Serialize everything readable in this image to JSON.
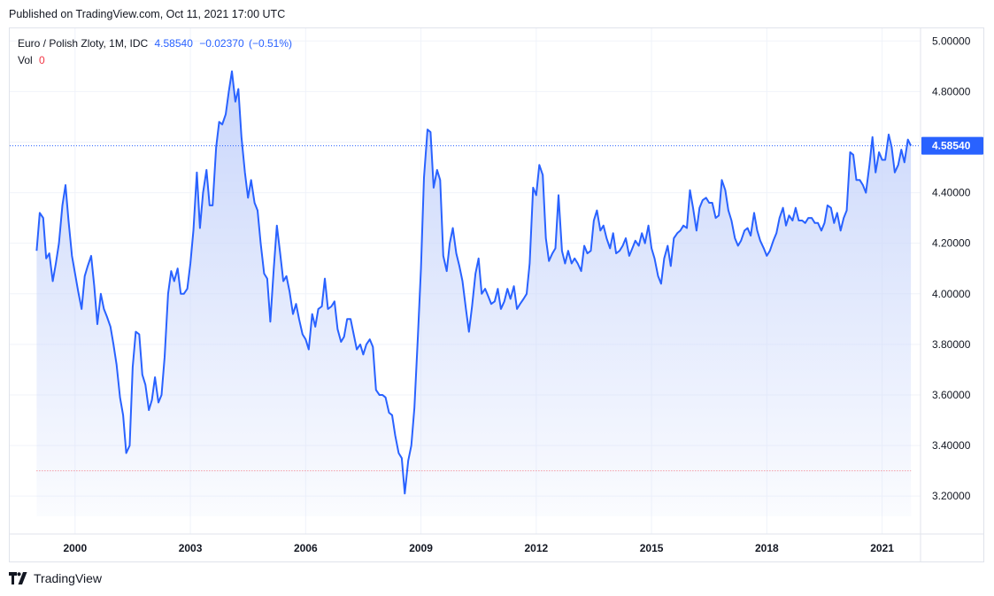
{
  "published": "Published on TradingView.com, Oct 11, 2021 17:00 UTC",
  "legend": {
    "symbol": "Euro / Polish Zloty, 1M, IDC",
    "last": "4.58540",
    "change": "−0.02370",
    "change_pct": "(−0.51%)",
    "vol_label": "Vol",
    "vol_value": "0"
  },
  "price_badge": "4.58540",
  "brand": "TradingView",
  "colors": {
    "line": "#2962ff",
    "fill_top": "#c9d6fb",
    "price_badge": "#2962ff",
    "low_line": "#f23645",
    "grid": "#f0f3fa"
  },
  "icons": {
    "logo": "tradingview-logo-icon"
  },
  "chart_data": {
    "type": "area",
    "title": "Euro / Polish Zloty, 1M, IDC",
    "xlabel": "",
    "ylabel": "",
    "ylim": [
      3.05,
      5.05
    ],
    "xlim": [
      1998.3,
      2022.0
    ],
    "y_ticks": [
      "3.20000",
      "3.40000",
      "3.60000",
      "3.80000",
      "4.00000",
      "4.20000",
      "4.40000",
      "4.60000",
      "4.80000",
      "5.00000"
    ],
    "x_ticks": [
      {
        "label": "2000",
        "x": 2000.0
      },
      {
        "label": "2003",
        "x": 2003.0
      },
      {
        "label": "2006",
        "x": 2006.0
      },
      {
        "label": "2009",
        "x": 2009.0
      },
      {
        "label": "2012",
        "x": 2012.0
      },
      {
        "label": "2015",
        "x": 2015.0
      },
      {
        "label": "2018",
        "x": 2018.0
      },
      {
        "label": "2021",
        "x": 2021.0
      }
    ],
    "current_price": 4.5854,
    "low_price": 3.3,
    "grid": true,
    "series": [
      {
        "points": [
          [
            1999.0,
            4.17
          ],
          [
            1999.08,
            4.32
          ],
          [
            1999.17,
            4.3
          ],
          [
            1999.25,
            4.14
          ],
          [
            1999.33,
            4.16
          ],
          [
            1999.42,
            4.05
          ],
          [
            1999.5,
            4.12
          ],
          [
            1999.58,
            4.2
          ],
          [
            1999.67,
            4.35
          ],
          [
            1999.75,
            4.43
          ],
          [
            1999.83,
            4.29
          ],
          [
            1999.92,
            4.15
          ],
          [
            2000.0,
            4.08
          ],
          [
            2000.08,
            4.01
          ],
          [
            2000.17,
            3.94
          ],
          [
            2000.25,
            4.07
          ],
          [
            2000.33,
            4.11
          ],
          [
            2000.42,
            4.15
          ],
          [
            2000.5,
            4.03
          ],
          [
            2000.58,
            3.88
          ],
          [
            2000.67,
            4.0
          ],
          [
            2000.75,
            3.94
          ],
          [
            2000.83,
            3.91
          ],
          [
            2000.92,
            3.87
          ],
          [
            2001.0,
            3.8
          ],
          [
            2001.08,
            3.72
          ],
          [
            2001.17,
            3.59
          ],
          [
            2001.25,
            3.52
          ],
          [
            2001.33,
            3.37
          ],
          [
            2001.42,
            3.4
          ],
          [
            2001.5,
            3.71
          ],
          [
            2001.58,
            3.85
          ],
          [
            2001.67,
            3.84
          ],
          [
            2001.75,
            3.68
          ],
          [
            2001.83,
            3.64
          ],
          [
            2001.92,
            3.54
          ],
          [
            2002.0,
            3.58
          ],
          [
            2002.08,
            3.67
          ],
          [
            2002.17,
            3.57
          ],
          [
            2002.25,
            3.6
          ],
          [
            2002.33,
            3.75
          ],
          [
            2002.42,
            4.0
          ],
          [
            2002.5,
            4.09
          ],
          [
            2002.58,
            4.05
          ],
          [
            2002.67,
            4.1
          ],
          [
            2002.75,
            4.0
          ],
          [
            2002.83,
            4.0
          ],
          [
            2002.92,
            4.02
          ],
          [
            2003.0,
            4.12
          ],
          [
            2003.08,
            4.25
          ],
          [
            2003.17,
            4.48
          ],
          [
            2003.25,
            4.26
          ],
          [
            2003.33,
            4.4
          ],
          [
            2003.42,
            4.49
          ],
          [
            2003.5,
            4.35
          ],
          [
            2003.58,
            4.35
          ],
          [
            2003.67,
            4.58
          ],
          [
            2003.75,
            4.68
          ],
          [
            2003.83,
            4.67
          ],
          [
            2003.92,
            4.71
          ],
          [
            2004.0,
            4.8
          ],
          [
            2004.08,
            4.88
          ],
          [
            2004.17,
            4.76
          ],
          [
            2004.25,
            4.81
          ],
          [
            2004.33,
            4.62
          ],
          [
            2004.42,
            4.48
          ],
          [
            2004.5,
            4.38
          ],
          [
            2004.58,
            4.45
          ],
          [
            2004.67,
            4.36
          ],
          [
            2004.75,
            4.33
          ],
          [
            2004.83,
            4.2
          ],
          [
            2004.92,
            4.08
          ],
          [
            2005.0,
            4.06
          ],
          [
            2005.08,
            3.89
          ],
          [
            2005.17,
            4.1
          ],
          [
            2005.25,
            4.27
          ],
          [
            2005.33,
            4.17
          ],
          [
            2005.42,
            4.05
          ],
          [
            2005.5,
            4.07
          ],
          [
            2005.58,
            4.01
          ],
          [
            2005.67,
            3.92
          ],
          [
            2005.75,
            3.96
          ],
          [
            2005.83,
            3.9
          ],
          [
            2005.92,
            3.84
          ],
          [
            2006.0,
            3.82
          ],
          [
            2006.08,
            3.78
          ],
          [
            2006.17,
            3.92
          ],
          [
            2006.25,
            3.87
          ],
          [
            2006.33,
            3.94
          ],
          [
            2006.42,
            3.95
          ],
          [
            2006.5,
            4.06
          ],
          [
            2006.58,
            3.94
          ],
          [
            2006.67,
            3.95
          ],
          [
            2006.75,
            3.97
          ],
          [
            2006.83,
            3.86
          ],
          [
            2006.92,
            3.81
          ],
          [
            2007.0,
            3.83
          ],
          [
            2007.08,
            3.9
          ],
          [
            2007.17,
            3.9
          ],
          [
            2007.25,
            3.84
          ],
          [
            2007.33,
            3.78
          ],
          [
            2007.42,
            3.8
          ],
          [
            2007.5,
            3.76
          ],
          [
            2007.58,
            3.8
          ],
          [
            2007.67,
            3.82
          ],
          [
            2007.75,
            3.79
          ],
          [
            2007.83,
            3.62
          ],
          [
            2007.92,
            3.6
          ],
          [
            2008.0,
            3.6
          ],
          [
            2008.08,
            3.59
          ],
          [
            2008.17,
            3.53
          ],
          [
            2008.25,
            3.52
          ],
          [
            2008.33,
            3.44
          ],
          [
            2008.42,
            3.37
          ],
          [
            2008.5,
            3.35
          ],
          [
            2008.58,
            3.21
          ],
          [
            2008.67,
            3.34
          ],
          [
            2008.75,
            3.4
          ],
          [
            2008.83,
            3.55
          ],
          [
            2008.92,
            3.83
          ],
          [
            2009.0,
            4.1
          ],
          [
            2009.08,
            4.46
          ],
          [
            2009.17,
            4.65
          ],
          [
            2009.25,
            4.64
          ],
          [
            2009.33,
            4.42
          ],
          [
            2009.42,
            4.49
          ],
          [
            2009.5,
            4.45
          ],
          [
            2009.58,
            4.15
          ],
          [
            2009.67,
            4.09
          ],
          [
            2009.75,
            4.2
          ],
          [
            2009.83,
            4.26
          ],
          [
            2009.92,
            4.16
          ],
          [
            2010.0,
            4.11
          ],
          [
            2010.08,
            4.05
          ],
          [
            2010.17,
            3.94
          ],
          [
            2010.25,
            3.85
          ],
          [
            2010.33,
            3.95
          ],
          [
            2010.42,
            4.08
          ],
          [
            2010.5,
            4.14
          ],
          [
            2010.58,
            4.0
          ],
          [
            2010.67,
            4.02
          ],
          [
            2010.75,
            3.99
          ],
          [
            2010.83,
            3.96
          ],
          [
            2010.92,
            3.97
          ],
          [
            2011.0,
            4.02
          ],
          [
            2011.08,
            3.94
          ],
          [
            2011.17,
            3.97
          ],
          [
            2011.25,
            4.02
          ],
          [
            2011.33,
            3.98
          ],
          [
            2011.42,
            4.03
          ],
          [
            2011.5,
            3.94
          ],
          [
            2011.58,
            3.96
          ],
          [
            2011.67,
            3.98
          ],
          [
            2011.75,
            4.0
          ],
          [
            2011.83,
            4.12
          ],
          [
            2011.92,
            4.42
          ],
          [
            2012.0,
            4.39
          ],
          [
            2012.08,
            4.51
          ],
          [
            2012.17,
            4.47
          ],
          [
            2012.25,
            4.22
          ],
          [
            2012.33,
            4.13
          ],
          [
            2012.42,
            4.16
          ],
          [
            2012.5,
            4.18
          ],
          [
            2012.58,
            4.39
          ],
          [
            2012.67,
            4.17
          ],
          [
            2012.75,
            4.12
          ],
          [
            2012.83,
            4.17
          ],
          [
            2012.92,
            4.12
          ],
          [
            2013.0,
            4.14
          ],
          [
            2013.08,
            4.12
          ],
          [
            2013.17,
            4.09
          ],
          [
            2013.25,
            4.19
          ],
          [
            2013.33,
            4.16
          ],
          [
            2013.42,
            4.17
          ],
          [
            2013.5,
            4.29
          ],
          [
            2013.58,
            4.33
          ],
          [
            2013.67,
            4.25
          ],
          [
            2013.75,
            4.27
          ],
          [
            2013.83,
            4.22
          ],
          [
            2013.92,
            4.18
          ],
          [
            2014.0,
            4.24
          ],
          [
            2014.08,
            4.16
          ],
          [
            2014.17,
            4.17
          ],
          [
            2014.25,
            4.19
          ],
          [
            2014.33,
            4.22
          ],
          [
            2014.42,
            4.15
          ],
          [
            2014.5,
            4.18
          ],
          [
            2014.58,
            4.21
          ],
          [
            2014.67,
            4.19
          ],
          [
            2014.75,
            4.24
          ],
          [
            2014.83,
            4.2
          ],
          [
            2014.92,
            4.27
          ],
          [
            2015.0,
            4.18
          ],
          [
            2015.08,
            4.14
          ],
          [
            2015.17,
            4.07
          ],
          [
            2015.25,
            4.04
          ],
          [
            2015.33,
            4.14
          ],
          [
            2015.42,
            4.19
          ],
          [
            2015.5,
            4.11
          ],
          [
            2015.58,
            4.22
          ],
          [
            2015.67,
            4.24
          ],
          [
            2015.75,
            4.25
          ],
          [
            2015.83,
            4.27
          ],
          [
            2015.92,
            4.26
          ],
          [
            2016.0,
            4.41
          ],
          [
            2016.08,
            4.34
          ],
          [
            2016.17,
            4.25
          ],
          [
            2016.25,
            4.34
          ],
          [
            2016.33,
            4.37
          ],
          [
            2016.42,
            4.38
          ],
          [
            2016.5,
            4.36
          ],
          [
            2016.58,
            4.36
          ],
          [
            2016.67,
            4.3
          ],
          [
            2016.75,
            4.31
          ],
          [
            2016.83,
            4.45
          ],
          [
            2016.92,
            4.41
          ],
          [
            2017.0,
            4.33
          ],
          [
            2017.08,
            4.29
          ],
          [
            2017.17,
            4.22
          ],
          [
            2017.25,
            4.19
          ],
          [
            2017.33,
            4.21
          ],
          [
            2017.42,
            4.25
          ],
          [
            2017.5,
            4.26
          ],
          [
            2017.58,
            4.23
          ],
          [
            2017.67,
            4.32
          ],
          [
            2017.75,
            4.25
          ],
          [
            2017.83,
            4.21
          ],
          [
            2017.92,
            4.18
          ],
          [
            2018.0,
            4.15
          ],
          [
            2018.08,
            4.17
          ],
          [
            2018.17,
            4.21
          ],
          [
            2018.25,
            4.24
          ],
          [
            2018.33,
            4.3
          ],
          [
            2018.42,
            4.34
          ],
          [
            2018.5,
            4.27
          ],
          [
            2018.58,
            4.31
          ],
          [
            2018.67,
            4.29
          ],
          [
            2018.75,
            4.34
          ],
          [
            2018.83,
            4.29
          ],
          [
            2018.92,
            4.29
          ],
          [
            2019.0,
            4.28
          ],
          [
            2019.08,
            4.3
          ],
          [
            2019.17,
            4.3
          ],
          [
            2019.25,
            4.28
          ],
          [
            2019.33,
            4.28
          ],
          [
            2019.42,
            4.25
          ],
          [
            2019.5,
            4.28
          ],
          [
            2019.58,
            4.35
          ],
          [
            2019.67,
            4.34
          ],
          [
            2019.75,
            4.28
          ],
          [
            2019.83,
            4.32
          ],
          [
            2019.92,
            4.25
          ],
          [
            2020.0,
            4.3
          ],
          [
            2020.08,
            4.33
          ],
          [
            2020.17,
            4.56
          ],
          [
            2020.25,
            4.55
          ],
          [
            2020.33,
            4.45
          ],
          [
            2020.42,
            4.45
          ],
          [
            2020.5,
            4.43
          ],
          [
            2020.58,
            4.4
          ],
          [
            2020.67,
            4.51
          ],
          [
            2020.75,
            4.62
          ],
          [
            2020.83,
            4.48
          ],
          [
            2020.92,
            4.56
          ],
          [
            2021.0,
            4.53
          ],
          [
            2021.08,
            4.53
          ],
          [
            2021.17,
            4.63
          ],
          [
            2021.25,
            4.58
          ],
          [
            2021.33,
            4.48
          ],
          [
            2021.42,
            4.51
          ],
          [
            2021.5,
            4.57
          ],
          [
            2021.58,
            4.52
          ],
          [
            2021.67,
            4.61
          ],
          [
            2021.75,
            4.5854
          ]
        ]
      }
    ]
  }
}
